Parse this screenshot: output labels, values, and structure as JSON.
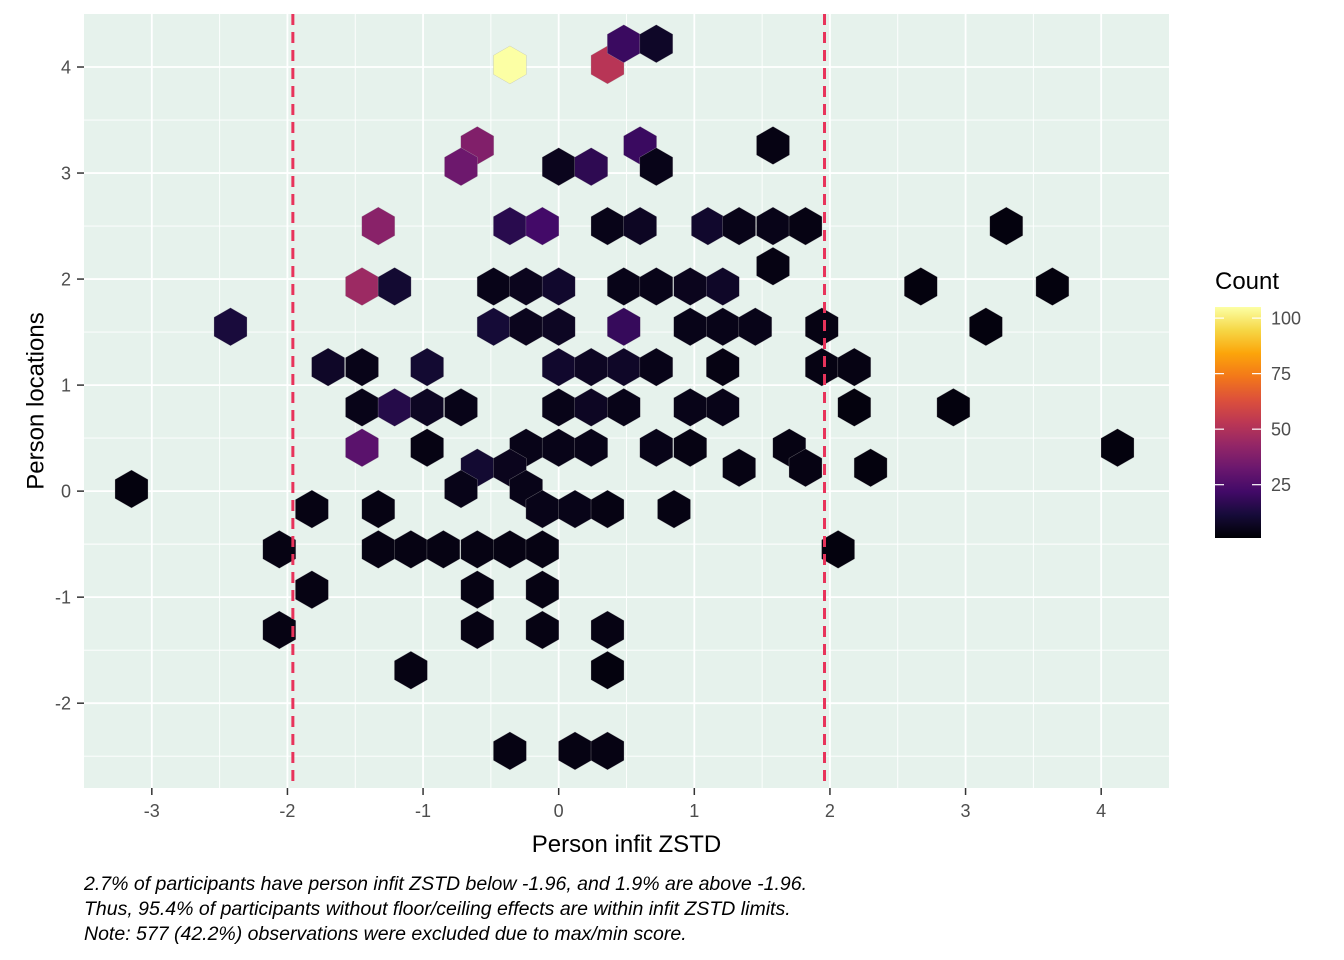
{
  "chart_data": {
    "type": "hexbin",
    "xlabel": "Person infit ZSTD",
    "ylabel": "Person locations",
    "xlim": [
      -3.5,
      4.5
    ],
    "ylim": [
      -2.8,
      4.5
    ],
    "x_ticks": [
      -3,
      -2,
      -1,
      0,
      1,
      2,
      3,
      4
    ],
    "y_ticks": [
      -2,
      -1,
      0,
      1,
      2,
      3,
      4
    ],
    "x_tick_labels": [
      "-3",
      "-2",
      "-1",
      "0",
      "1",
      "2",
      "3",
      "4"
    ],
    "y_tick_labels": [
      "-2",
      "-1",
      "0",
      "1",
      "2",
      "3",
      "4"
    ],
    "reference_lines_x": [
      -1.96,
      1.96
    ],
    "reference_line_color": "#e8335b",
    "panel_background": "#e6f2ec",
    "grid": true,
    "legend": {
      "title": "Count",
      "placement": "right",
      "min": 1,
      "max": 105,
      "breaks": [
        25,
        50,
        75,
        100
      ],
      "break_labels": [
        "25",
        "50",
        "75",
        "100"
      ],
      "palette": "inferno"
    },
    "bins": [
      {
        "x": -0.36,
        "y": 4.02,
        "count": 105
      },
      {
        "x": 0.36,
        "y": 4.02,
        "count": 52
      },
      {
        "x": 0.48,
        "y": 4.22,
        "count": 20
      },
      {
        "x": 0.72,
        "y": 4.22,
        "count": 8
      },
      {
        "x": -0.6,
        "y": 3.26,
        "count": 38
      },
      {
        "x": -0.72,
        "y": 3.06,
        "count": 33
      },
      {
        "x": 0.0,
        "y": 3.06,
        "count": 6
      },
      {
        "x": 0.24,
        "y": 3.06,
        "count": 17
      },
      {
        "x": 0.6,
        "y": 3.26,
        "count": 20
      },
      {
        "x": 0.72,
        "y": 3.06,
        "count": 5
      },
      {
        "x": 1.58,
        "y": 3.26,
        "count": 4
      },
      {
        "x": -1.33,
        "y": 2.5,
        "count": 40
      },
      {
        "x": -0.36,
        "y": 2.5,
        "count": 16
      },
      {
        "x": -0.12,
        "y": 2.5,
        "count": 22
      },
      {
        "x": 0.36,
        "y": 2.5,
        "count": 5
      },
      {
        "x": 0.6,
        "y": 2.5,
        "count": 7
      },
      {
        "x": 1.1,
        "y": 2.5,
        "count": 9
      },
      {
        "x": 1.33,
        "y": 2.5,
        "count": 5
      },
      {
        "x": 1.58,
        "y": 2.5,
        "count": 5
      },
      {
        "x": 1.82,
        "y": 2.5,
        "count": 4
      },
      {
        "x": 3.3,
        "y": 2.5,
        "count": 3
      },
      {
        "x": 1.58,
        "y": 2.12,
        "count": 4
      },
      {
        "x": -1.45,
        "y": 1.93,
        "count": 45
      },
      {
        "x": -1.21,
        "y": 1.93,
        "count": 10
      },
      {
        "x": -0.48,
        "y": 1.93,
        "count": 5
      },
      {
        "x": -0.24,
        "y": 1.93,
        "count": 6
      },
      {
        "x": 0.0,
        "y": 1.93,
        "count": 9
      },
      {
        "x": 0.48,
        "y": 1.93,
        "count": 5
      },
      {
        "x": 0.72,
        "y": 1.93,
        "count": 5
      },
      {
        "x": 0.97,
        "y": 1.93,
        "count": 6
      },
      {
        "x": 1.21,
        "y": 1.93,
        "count": 8
      },
      {
        "x": 2.67,
        "y": 1.93,
        "count": 3
      },
      {
        "x": 3.64,
        "y": 1.93,
        "count": 3
      },
      {
        "x": -2.42,
        "y": 1.55,
        "count": 12
      },
      {
        "x": -0.48,
        "y": 1.55,
        "count": 11
      },
      {
        "x": -0.24,
        "y": 1.55,
        "count": 6
      },
      {
        "x": 0.0,
        "y": 1.55,
        "count": 7
      },
      {
        "x": 0.48,
        "y": 1.55,
        "count": 19
      },
      {
        "x": 0.97,
        "y": 1.55,
        "count": 5
      },
      {
        "x": 1.21,
        "y": 1.55,
        "count": 5
      },
      {
        "x": 1.45,
        "y": 1.55,
        "count": 5
      },
      {
        "x": 1.94,
        "y": 1.55,
        "count": 4
      },
      {
        "x": 3.15,
        "y": 1.55,
        "count": 3
      },
      {
        "x": -1.7,
        "y": 1.17,
        "count": 8
      },
      {
        "x": -1.45,
        "y": 1.17,
        "count": 5
      },
      {
        "x": -0.97,
        "y": 1.17,
        "count": 10
      },
      {
        "x": 0.0,
        "y": 1.17,
        "count": 9
      },
      {
        "x": 0.24,
        "y": 1.17,
        "count": 7
      },
      {
        "x": 0.48,
        "y": 1.17,
        "count": 8
      },
      {
        "x": 0.72,
        "y": 1.17,
        "count": 5
      },
      {
        "x": 1.21,
        "y": 1.17,
        "count": 4
      },
      {
        "x": 1.94,
        "y": 1.17,
        "count": 4
      },
      {
        "x": 2.18,
        "y": 1.17,
        "count": 4
      },
      {
        "x": -1.45,
        "y": 0.79,
        "count": 5
      },
      {
        "x": -1.21,
        "y": 0.79,
        "count": 15
      },
      {
        "x": -0.97,
        "y": 0.79,
        "count": 7
      },
      {
        "x": -0.72,
        "y": 0.79,
        "count": 5
      },
      {
        "x": 0.0,
        "y": 0.79,
        "count": 5
      },
      {
        "x": 0.24,
        "y": 0.79,
        "count": 7
      },
      {
        "x": 0.48,
        "y": 0.79,
        "count": 5
      },
      {
        "x": 0.97,
        "y": 0.79,
        "count": 5
      },
      {
        "x": 1.21,
        "y": 0.79,
        "count": 5
      },
      {
        "x": 2.18,
        "y": 0.79,
        "count": 3
      },
      {
        "x": 2.91,
        "y": 0.79,
        "count": 3
      },
      {
        "x": -1.45,
        "y": 0.41,
        "count": 28
      },
      {
        "x": -0.97,
        "y": 0.41,
        "count": 4
      },
      {
        "x": -0.24,
        "y": 0.41,
        "count": 5
      },
      {
        "x": 0.0,
        "y": 0.41,
        "count": 5
      },
      {
        "x": 0.24,
        "y": 0.41,
        "count": 5
      },
      {
        "x": 0.72,
        "y": 0.41,
        "count": 5
      },
      {
        "x": 0.97,
        "y": 0.41,
        "count": 4
      },
      {
        "x": 1.7,
        "y": 0.41,
        "count": 4
      },
      {
        "x": 4.12,
        "y": 0.41,
        "count": 3
      },
      {
        "x": -0.6,
        "y": 0.22,
        "count": 10
      },
      {
        "x": -0.36,
        "y": 0.22,
        "count": 6
      },
      {
        "x": 1.33,
        "y": 0.22,
        "count": 4
      },
      {
        "x": 1.82,
        "y": 0.22,
        "count": 4
      },
      {
        "x": 2.3,
        "y": 0.22,
        "count": 3
      },
      {
        "x": -3.15,
        "y": 0.02,
        "count": 3
      },
      {
        "x": -0.72,
        "y": 0.02,
        "count": 5
      },
      {
        "x": -0.24,
        "y": 0.02,
        "count": 5
      },
      {
        "x": -1.82,
        "y": -0.17,
        "count": 4
      },
      {
        "x": -1.33,
        "y": -0.17,
        "count": 4
      },
      {
        "x": -0.12,
        "y": -0.17,
        "count": 5
      },
      {
        "x": 0.12,
        "y": -0.17,
        "count": 5
      },
      {
        "x": 0.36,
        "y": -0.17,
        "count": 4
      },
      {
        "x": 0.85,
        "y": -0.17,
        "count": 4
      },
      {
        "x": -2.06,
        "y": -0.55,
        "count": 4
      },
      {
        "x": -1.33,
        "y": -0.55,
        "count": 4
      },
      {
        "x": -1.09,
        "y": -0.55,
        "count": 4
      },
      {
        "x": -0.85,
        "y": -0.55,
        "count": 4
      },
      {
        "x": -0.6,
        "y": -0.55,
        "count": 4
      },
      {
        "x": -0.36,
        "y": -0.55,
        "count": 4
      },
      {
        "x": -0.12,
        "y": -0.55,
        "count": 4
      },
      {
        "x": 2.06,
        "y": -0.55,
        "count": 3
      },
      {
        "x": -1.82,
        "y": -0.93,
        "count": 4
      },
      {
        "x": -0.6,
        "y": -0.93,
        "count": 4
      },
      {
        "x": -0.12,
        "y": -0.93,
        "count": 4
      },
      {
        "x": -2.06,
        "y": -1.31,
        "count": 4
      },
      {
        "x": -0.6,
        "y": -1.31,
        "count": 4
      },
      {
        "x": -0.12,
        "y": -1.31,
        "count": 4
      },
      {
        "x": 0.36,
        "y": -1.31,
        "count": 4
      },
      {
        "x": -1.09,
        "y": -1.69,
        "count": 4
      },
      {
        "x": 0.36,
        "y": -1.69,
        "count": 3
      },
      {
        "x": -0.36,
        "y": -2.45,
        "count": 4
      },
      {
        "x": 0.12,
        "y": -2.45,
        "count": 4
      },
      {
        "x": 0.36,
        "y": -2.45,
        "count": 4
      }
    ]
  },
  "caption": {
    "line1": "2.7% of participants have person infit ZSTD below -1.96, and 1.9% are above -1.96.",
    "line2": "Thus, 95.4% of participants without floor/ceiling effects are within infit ZSTD limits.",
    "line3": "Note: 577 (42.2%) observations were excluded due to max/min score."
  }
}
